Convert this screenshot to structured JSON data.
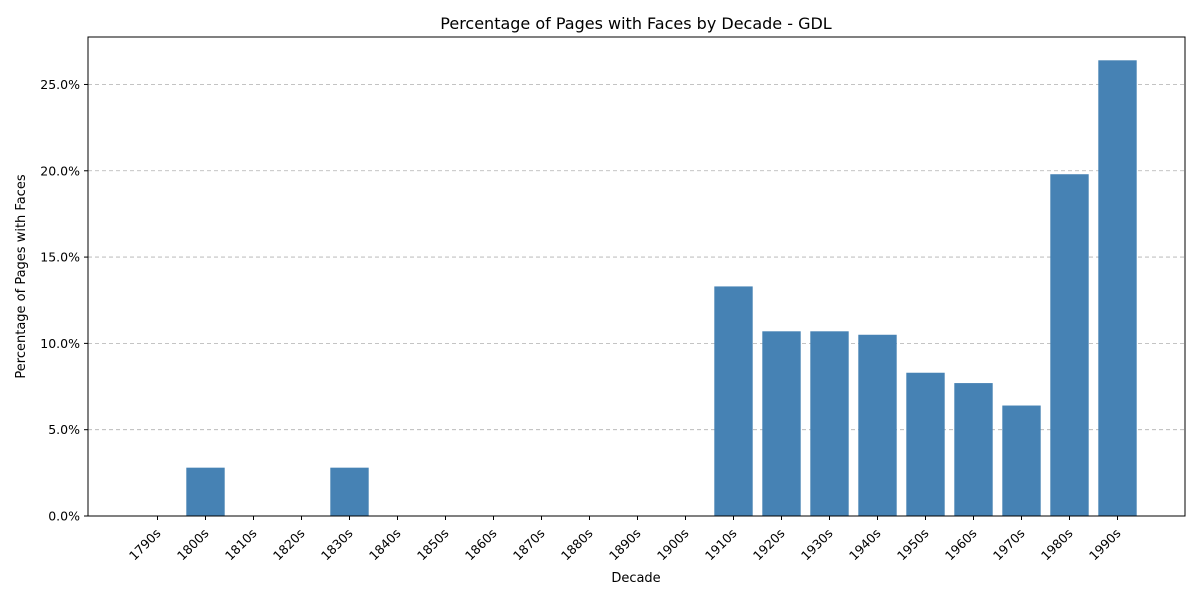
{
  "chart_data": {
    "type": "bar",
    "title": "Percentage of Pages with Faces by Decade - GDL",
    "xlabel": "Decade",
    "ylabel": "Percentage of Pages with Faces",
    "categories": [
      "1790s",
      "1800s",
      "1810s",
      "1820s",
      "1830s",
      "1840s",
      "1850s",
      "1860s",
      "1870s",
      "1880s",
      "1890s",
      "1900s",
      "1910s",
      "1920s",
      "1930s",
      "1940s",
      "1950s",
      "1960s",
      "1970s",
      "1980s",
      "1990s"
    ],
    "values": [
      0.0,
      2.8,
      0.0,
      0.0,
      2.8,
      0.0,
      0.0,
      0.0,
      0.0,
      0.0,
      0.0,
      0.0,
      13.3,
      10.7,
      10.7,
      10.5,
      8.3,
      7.7,
      6.4,
      19.8,
      26.4
    ],
    "ylim": [
      0,
      27.75
    ],
    "yticks": [
      0,
      5,
      10,
      15,
      20,
      25
    ],
    "ytick_labels": [
      "0.0%",
      "5.0%",
      "10.0%",
      "15.0%",
      "20.0%",
      "25.0%"
    ],
    "grid": "y-dashed",
    "bar_color": "#4682b4"
  }
}
